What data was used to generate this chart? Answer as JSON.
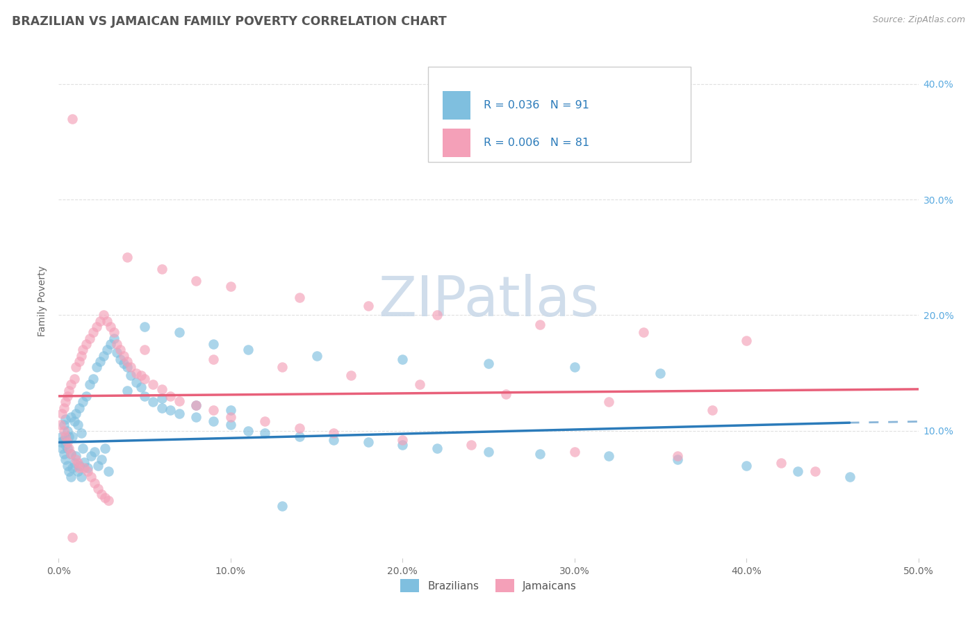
{
  "title": "BRAZILIAN VS JAMAICAN FAMILY POVERTY CORRELATION CHART",
  "source": "Source: ZipAtlas.com",
  "ylabel": "Family Poverty",
  "xlim": [
    0,
    0.5
  ],
  "ylim": [
    -0.01,
    0.435
  ],
  "background_color": "#ffffff",
  "grid_color": "#e0e0e0",
  "title_color": "#555555",
  "blue_color": "#7fbfdf",
  "pink_color": "#f4a0b8",
  "blue_line_color": "#2b7bba",
  "pink_line_color": "#e8607a",
  "legend_text_color": "#2b7bba",
  "watermark_color": "#c8d8e8",
  "legend_r_blue": "0.036",
  "legend_n_blue": "91",
  "legend_r_pink": "0.006",
  "legend_n_pink": "81",
  "braz_x": [
    0.001,
    0.002,
    0.002,
    0.003,
    0.003,
    0.003,
    0.004,
    0.004,
    0.004,
    0.005,
    0.005,
    0.005,
    0.006,
    0.006,
    0.007,
    0.007,
    0.007,
    0.008,
    0.008,
    0.009,
    0.009,
    0.01,
    0.01,
    0.011,
    0.011,
    0.012,
    0.012,
    0.013,
    0.013,
    0.014,
    0.014,
    0.015,
    0.016,
    0.017,
    0.018,
    0.019,
    0.02,
    0.021,
    0.022,
    0.023,
    0.024,
    0.025,
    0.026,
    0.027,
    0.028,
    0.029,
    0.03,
    0.032,
    0.034,
    0.036,
    0.038,
    0.04,
    0.042,
    0.045,
    0.048,
    0.05,
    0.055,
    0.06,
    0.065,
    0.07,
    0.08,
    0.09,
    0.1,
    0.11,
    0.12,
    0.14,
    0.16,
    0.18,
    0.2,
    0.22,
    0.25,
    0.28,
    0.32,
    0.36,
    0.4,
    0.43,
    0.46,
    0.05,
    0.07,
    0.09,
    0.11,
    0.15,
    0.2,
    0.25,
    0.3,
    0.35,
    0.04,
    0.06,
    0.08,
    0.1,
    0.13
  ],
  "braz_y": [
    0.09,
    0.085,
    0.095,
    0.08,
    0.092,
    0.105,
    0.075,
    0.088,
    0.11,
    0.07,
    0.085,
    0.1,
    0.065,
    0.095,
    0.06,
    0.08,
    0.112,
    0.068,
    0.095,
    0.072,
    0.108,
    0.078,
    0.115,
    0.065,
    0.105,
    0.07,
    0.12,
    0.06,
    0.098,
    0.085,
    0.125,
    0.073,
    0.13,
    0.068,
    0.14,
    0.078,
    0.145,
    0.082,
    0.155,
    0.07,
    0.16,
    0.075,
    0.165,
    0.085,
    0.17,
    0.065,
    0.175,
    0.18,
    0.168,
    0.162,
    0.158,
    0.155,
    0.148,
    0.142,
    0.138,
    0.13,
    0.125,
    0.12,
    0.118,
    0.115,
    0.112,
    0.108,
    0.105,
    0.1,
    0.098,
    0.095,
    0.092,
    0.09,
    0.088,
    0.085,
    0.082,
    0.08,
    0.078,
    0.075,
    0.07,
    0.065,
    0.06,
    0.19,
    0.185,
    0.175,
    0.17,
    0.165,
    0.162,
    0.158,
    0.155,
    0.15,
    0.135,
    0.128,
    0.122,
    0.118,
    0.035
  ],
  "jam_x": [
    0.001,
    0.002,
    0.003,
    0.003,
    0.004,
    0.004,
    0.005,
    0.005,
    0.006,
    0.006,
    0.007,
    0.007,
    0.008,
    0.008,
    0.009,
    0.01,
    0.01,
    0.011,
    0.012,
    0.012,
    0.013,
    0.014,
    0.015,
    0.016,
    0.017,
    0.018,
    0.019,
    0.02,
    0.021,
    0.022,
    0.023,
    0.024,
    0.025,
    0.026,
    0.027,
    0.028,
    0.029,
    0.03,
    0.032,
    0.034,
    0.036,
    0.038,
    0.04,
    0.042,
    0.045,
    0.048,
    0.05,
    0.055,
    0.06,
    0.065,
    0.07,
    0.08,
    0.09,
    0.1,
    0.12,
    0.14,
    0.16,
    0.2,
    0.24,
    0.3,
    0.36,
    0.42,
    0.04,
    0.06,
    0.08,
    0.1,
    0.14,
    0.18,
    0.22,
    0.28,
    0.34,
    0.4,
    0.05,
    0.09,
    0.13,
    0.17,
    0.21,
    0.26,
    0.32,
    0.38,
    0.44
  ],
  "jam_y": [
    0.105,
    0.115,
    0.1,
    0.12,
    0.095,
    0.125,
    0.09,
    0.13,
    0.085,
    0.135,
    0.08,
    0.14,
    0.008,
    0.37,
    0.145,
    0.075,
    0.155,
    0.072,
    0.068,
    0.16,
    0.165,
    0.17,
    0.068,
    0.175,
    0.065,
    0.18,
    0.06,
    0.185,
    0.055,
    0.19,
    0.05,
    0.195,
    0.045,
    0.2,
    0.042,
    0.195,
    0.04,
    0.19,
    0.185,
    0.175,
    0.17,
    0.165,
    0.16,
    0.155,
    0.15,
    0.148,
    0.145,
    0.14,
    0.136,
    0.13,
    0.126,
    0.122,
    0.118,
    0.112,
    0.108,
    0.102,
    0.098,
    0.092,
    0.088,
    0.082,
    0.078,
    0.072,
    0.25,
    0.24,
    0.23,
    0.225,
    0.215,
    0.208,
    0.2,
    0.192,
    0.185,
    0.178,
    0.17,
    0.162,
    0.155,
    0.148,
    0.14,
    0.132,
    0.125,
    0.118,
    0.065
  ]
}
